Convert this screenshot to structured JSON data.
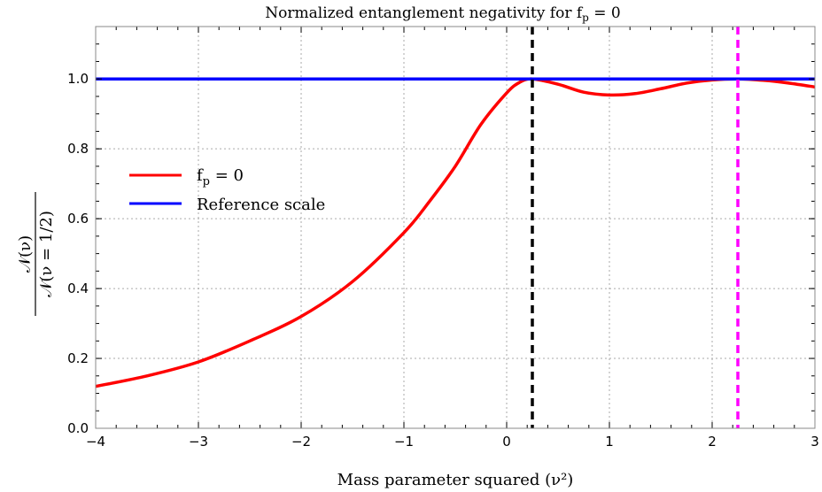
{
  "chart_data": {
    "type": "line",
    "title": "Normalized entanglement negativity for f_p = 0",
    "title_parts": {
      "prefix": "Normalized entanglement negativity for f",
      "sub": "p",
      "suffix": " = 0"
    },
    "xlabel": "Mass parameter squared (ν²)",
    "ylabel": {
      "numerator": "𝒩(ν)",
      "denominator": "𝒩(ν = 1/2)"
    },
    "xlim": [
      -4,
      3
    ],
    "ylim": [
      0,
      1.15
    ],
    "xticks": [
      "-4",
      "-3",
      "-2",
      "-1",
      "0",
      "1",
      "2",
      "3"
    ],
    "yticks": [
      "0.0",
      "0.2",
      "0.4",
      "0.6",
      "0.8",
      "1.0"
    ],
    "grid": true,
    "legend_placement": "center-left",
    "series": [
      {
        "name": "f_p = 0",
        "legend": {
          "prefix": "f",
          "sub": "p",
          "suffix": " = 0"
        },
        "color": "#ff0000",
        "x": [
          -4,
          -3.5,
          -3,
          -2.5,
          -2,
          -1.5,
          -1,
          -0.75,
          -0.5,
          -0.25,
          0,
          0.125,
          0.25,
          0.5,
          0.75,
          1,
          1.25,
          1.5,
          1.75,
          2,
          2.25,
          2.5,
          2.75,
          3
        ],
        "y": [
          0.12,
          0.15,
          0.19,
          0.25,
          0.32,
          0.42,
          0.56,
          0.65,
          0.75,
          0.87,
          0.96,
          0.99,
          1.0,
          0.985,
          0.962,
          0.954,
          0.958,
          0.972,
          0.988,
          0.997,
          1.0,
          0.996,
          0.988,
          0.977
        ]
      },
      {
        "name": "Reference scale",
        "color": "#0000ff",
        "x": [
          -4,
          3
        ],
        "y": [
          1.0,
          1.0
        ]
      }
    ],
    "vlines": [
      {
        "x": 0.25,
        "color": "#000000",
        "style": "dashed"
      },
      {
        "x": 2.25,
        "color": "#ff00ff",
        "style": "dashed"
      }
    ]
  }
}
